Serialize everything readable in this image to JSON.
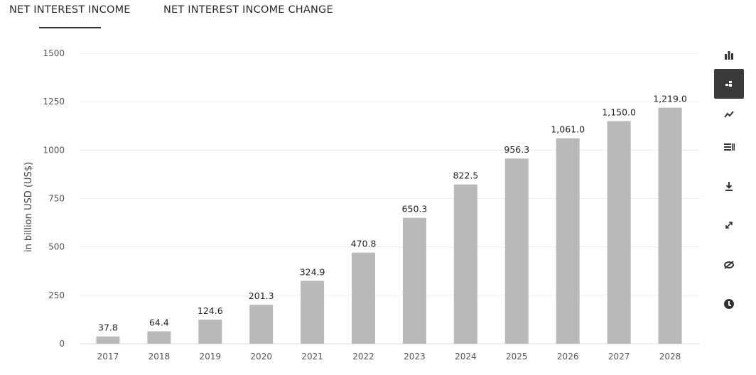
{
  "tabs": [
    {
      "label": "NET INTEREST INCOME",
      "active": true
    },
    {
      "label": "NET INTEREST INCOME CHANGE",
      "active": false
    }
  ],
  "toolbar": {
    "items": [
      {
        "icon": "bar-chart-icon",
        "active": false
      },
      {
        "icon": "bar-chart-alt-icon",
        "active": true
      },
      {
        "icon": "line-chart-icon",
        "active": false
      },
      {
        "icon": "table-icon",
        "active": false
      },
      {
        "icon": "download-icon",
        "active": false
      },
      {
        "icon": "expand-icon",
        "active": false
      },
      {
        "icon": "hide-icon",
        "active": false
      },
      {
        "icon": "info-icon",
        "active": false
      }
    ]
  },
  "chart_data": {
    "type": "bar",
    "categories": [
      "2017",
      "2018",
      "2019",
      "2020",
      "2021",
      "2022",
      "2023",
      "2024",
      "2025",
      "2026",
      "2027",
      "2028"
    ],
    "values": [
      37.8,
      64.4,
      124.6,
      201.3,
      324.9,
      470.8,
      650.3,
      822.5,
      956.3,
      1061.0,
      1150.0,
      1219.0
    ],
    "data_labels": [
      "37.8",
      "64.4",
      "124.6",
      "201.3",
      "324.9",
      "470.8",
      "650.3",
      "822.5",
      "956.3",
      "1,061.0",
      "1,150.0",
      "1,219.0"
    ],
    "ylabel": "in billion USD (US$)",
    "yticks": [
      0,
      250,
      500,
      750,
      1000,
      1250,
      1500
    ],
    "ytick_labels": [
      "0",
      "250",
      "500",
      "750",
      "1000",
      "1250",
      "1500"
    ],
    "ylim": [
      0,
      1500
    ],
    "grid": true,
    "bar_color": "#b9b9b9"
  }
}
